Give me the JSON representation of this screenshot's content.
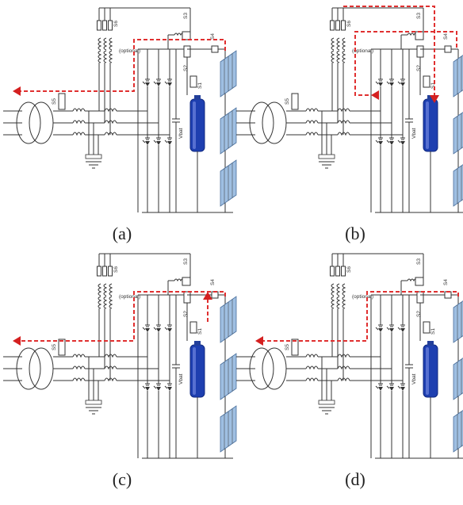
{
  "panels": [
    {
      "caption": "(a)",
      "flow": "pv-to-grid"
    },
    {
      "caption": "(b)",
      "flow": "pv-to-battery"
    },
    {
      "caption": "(c)",
      "flow": "battery-and-pv-to-grid"
    },
    {
      "caption": "(d)",
      "flow": "grid-path-bypass"
    }
  ],
  "labels": {
    "s1": "S1",
    "s2": "S2",
    "s3": "S3",
    "s4": "S4",
    "s5": "S5",
    "s6": "S6",
    "optional": "(optional)",
    "vbat": "Vbat"
  },
  "colors": {
    "wire": "#333333",
    "flow": "#e03030",
    "arrow": "#d42020",
    "battery": "#1e3fb0",
    "battery_light": "#6f86e0",
    "pv": "#9fbfe2"
  }
}
